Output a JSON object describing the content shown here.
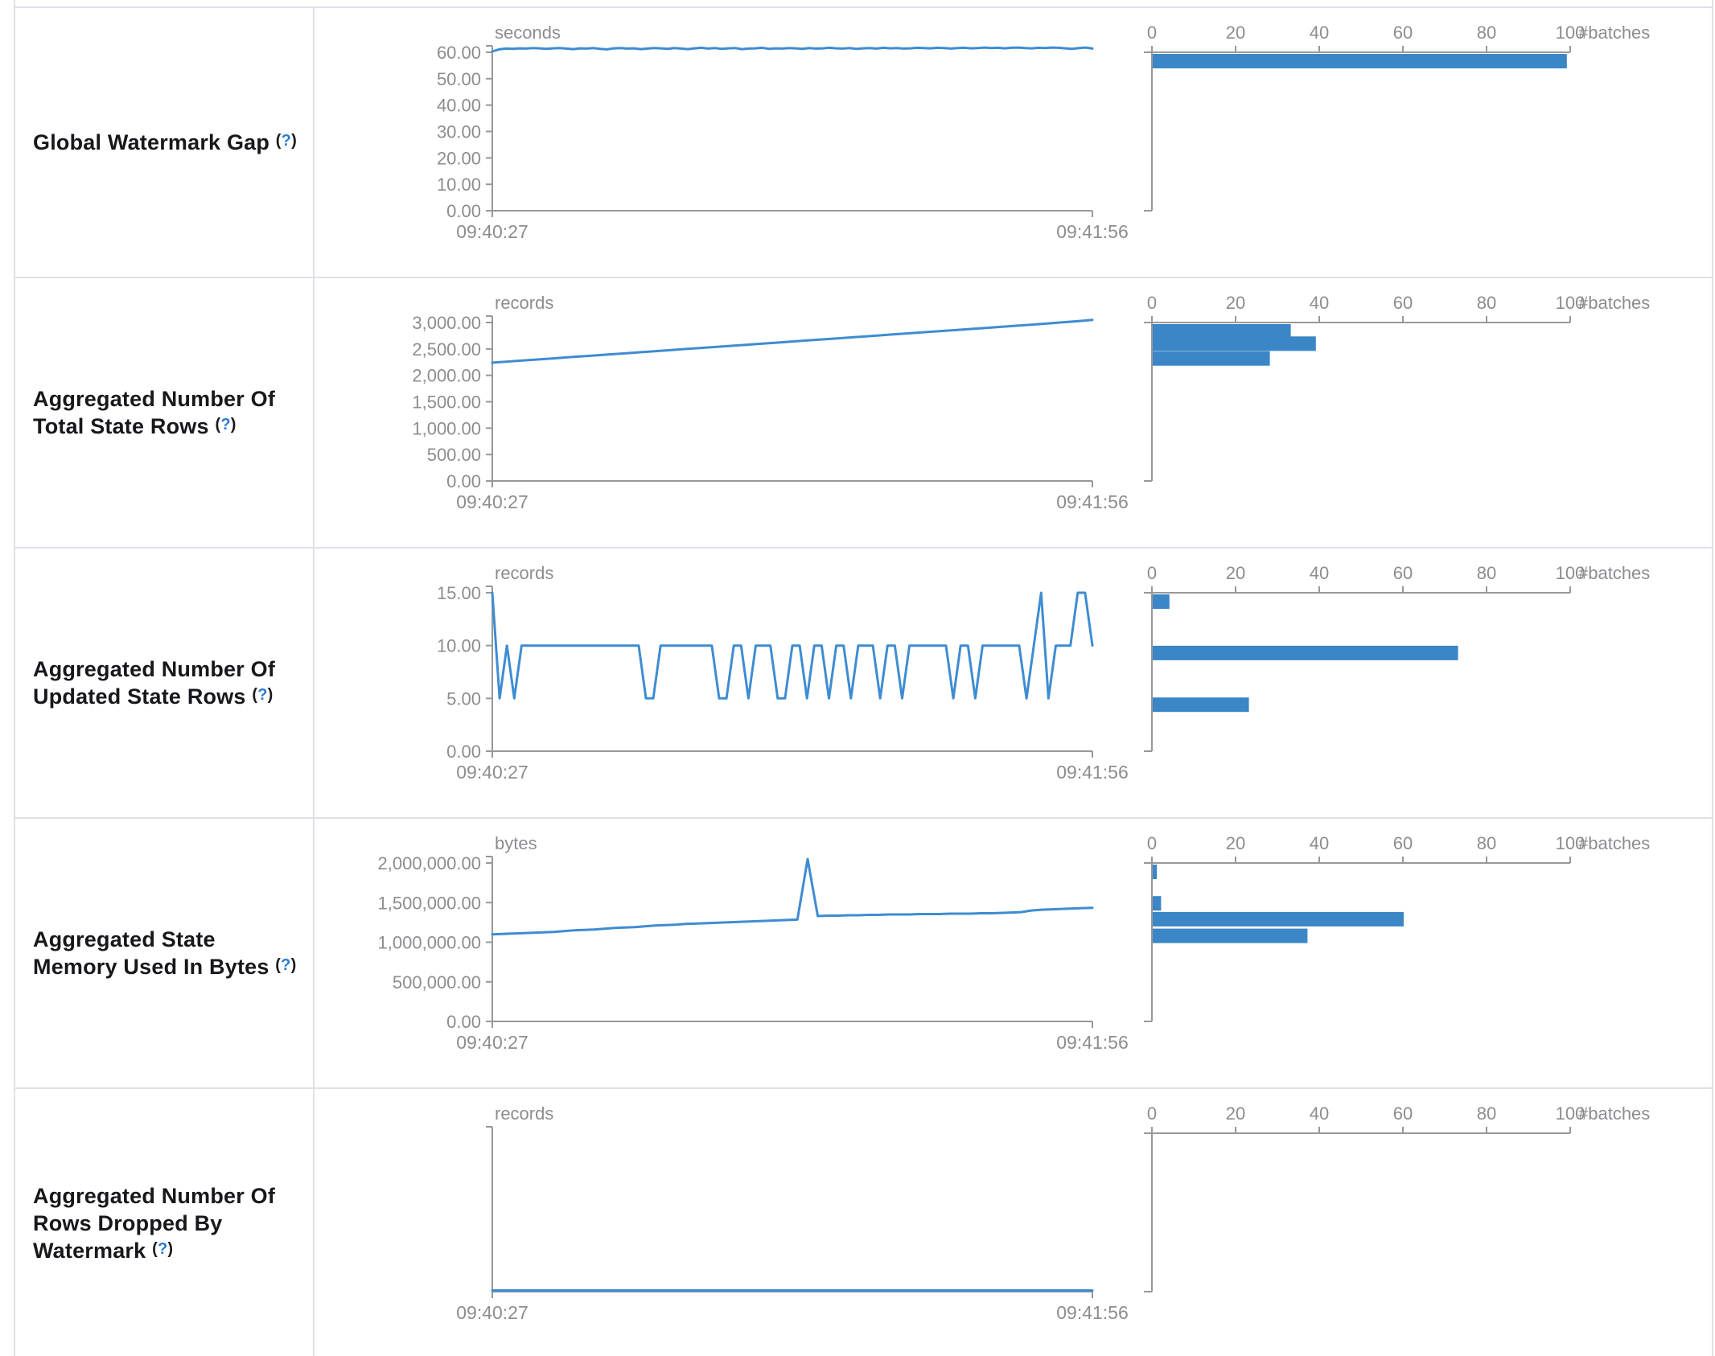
{
  "colors": {
    "accent_line": "#3e8cd2",
    "accent_bar": "#3a86c6",
    "axis": "#97989b",
    "tick_text": "#8b8d91",
    "label_text": "#17181c",
    "help_link": "#2b7cd5",
    "border": "#dee1e6"
  },
  "batches_axis": {
    "tick_labels": [
      "0",
      "20",
      "40",
      "60",
      "80",
      "100"
    ],
    "max": 100,
    "label": "#batches"
  },
  "rows": [
    {
      "label": "Global Watermark Gap",
      "help_open": "(",
      "help_q": "?",
      "help_close": ")",
      "timeline": {
        "type": "line",
        "unit": "seconds",
        "x_start": "09:40:27",
        "x_end": "09:41:56",
        "y_tick_labels": [
          "60.00",
          "50.00",
          "40.00",
          "30.00",
          "20.00",
          "10.00",
          "0.00"
        ],
        "y_top_value": 60,
        "values": [
          60.3,
          61.1,
          61.4,
          61.3,
          61.5,
          61.4,
          61.6,
          61.5,
          61.3,
          61.5,
          61.6,
          61.4,
          61.2,
          61.5,
          61.4,
          61.6,
          61.3,
          61.1,
          61.5,
          61.6,
          61.4,
          61.5,
          61.2,
          61.4,
          61.6,
          61.5,
          61.3,
          61.6,
          61.4,
          61.2,
          61.5,
          61.7,
          61.4,
          61.6,
          61.3,
          61.5,
          61.6,
          61.2,
          61.4,
          61.5,
          61.7,
          61.3,
          61.5,
          61.4,
          61.6,
          61.5,
          61.3,
          61.6,
          61.4,
          61.5,
          61.7,
          61.5,
          61.4,
          61.6,
          61.3,
          61.5,
          61.6,
          61.4,
          61.7,
          61.5,
          61.6,
          61.4,
          61.5,
          61.7,
          61.6,
          61.5,
          61.7,
          61.6,
          61.4,
          61.6,
          61.7,
          61.5,
          61.6,
          61.8,
          61.6,
          61.7,
          61.5,
          61.7,
          61.8,
          61.6,
          61.5,
          61.7,
          61.6,
          61.8,
          61.7,
          61.5,
          61.3,
          61.6,
          61.8,
          61.4
        ]
      },
      "histogram": {
        "type": "bar",
        "xlabel": "#batches",
        "bars": [
          {
            "value_bin": 58,
            "batches": 99
          }
        ]
      }
    },
    {
      "label": "Aggregated Number Of Total State Rows",
      "help_open": "(",
      "help_q": "?",
      "help_close": ")",
      "timeline": {
        "type": "line",
        "unit": "records",
        "x_start": "09:40:27",
        "x_end": "09:41:56",
        "y_tick_labels": [
          "3,000.00",
          "2,500.00",
          "2,000.00",
          "1,500.00",
          "1,000.00",
          "500.00",
          "0.00"
        ],
        "y_top_value": 3000,
        "values": [
          2240,
          2260,
          2280,
          2300,
          2320,
          2340,
          2360,
          2380,
          2400,
          2420,
          2440,
          2460,
          2480,
          2500,
          2520,
          2540,
          2560,
          2580,
          2600,
          2620,
          2640,
          2660,
          2680,
          2700,
          2720,
          2740,
          2760,
          2780,
          2800,
          2820,
          2840,
          2860,
          2880,
          2900,
          2920,
          2940,
          2960,
          2980,
          3005,
          3025,
          3050
        ]
      },
      "histogram": {
        "type": "bar",
        "xlabel": "#batches",
        "bars": [
          {
            "value_bin": 2880,
            "batches": 33
          },
          {
            "value_bin": 2600,
            "batches": 39
          },
          {
            "value_bin": 2320,
            "batches": 28
          }
        ]
      }
    },
    {
      "label": "Aggregated Number Of Updated State Rows",
      "help_open": "(",
      "help_q": "?",
      "help_close": ")",
      "timeline": {
        "type": "line",
        "unit": "records",
        "x_start": "09:40:27",
        "x_end": "09:41:56",
        "y_tick_labels": [
          "15.00",
          "10.00",
          "5.00",
          "0.00"
        ],
        "y_top_value": 15,
        "values": [
          15,
          5,
          10,
          5,
          10,
          10,
          10,
          10,
          10,
          10,
          10,
          10,
          10,
          10,
          10,
          10,
          10,
          10,
          10,
          10,
          10,
          5,
          5,
          10,
          10,
          10,
          10,
          10,
          10,
          10,
          10,
          5,
          5,
          10,
          10,
          5,
          10,
          10,
          10,
          5,
          5,
          10,
          10,
          5,
          10,
          10,
          5,
          10,
          10,
          5,
          10,
          10,
          10,
          5,
          10,
          10,
          5,
          10,
          10,
          10,
          10,
          10,
          10,
          5,
          10,
          10,
          5,
          10,
          10,
          10,
          10,
          10,
          10,
          5,
          10,
          15,
          5,
          10,
          10,
          10,
          15,
          15,
          10
        ]
      },
      "histogram": {
        "type": "bar",
        "xlabel": "#batches",
        "bars": [
          {
            "value_bin": 14.2,
            "batches": 4
          },
          {
            "value_bin": 9.3,
            "batches": 73
          },
          {
            "value_bin": 4.4,
            "batches": 23
          }
        ]
      }
    },
    {
      "label": "Aggregated State Memory Used In Bytes",
      "help_open": "(",
      "help_q": "?",
      "help_close": ")",
      "timeline": {
        "type": "line",
        "unit": "bytes",
        "x_start": "09:40:27",
        "x_end": "09:41:56",
        "y_tick_labels": [
          "2,000,000.00",
          "1,500,000.00",
          "1,000,000.00",
          "500,000.00",
          "0.00"
        ],
        "y_top_value": 2000000,
        "values": [
          1100000,
          1105000,
          1110000,
          1115000,
          1120000,
          1125000,
          1130000,
          1140000,
          1150000,
          1155000,
          1160000,
          1170000,
          1180000,
          1185000,
          1190000,
          1200000,
          1210000,
          1215000,
          1220000,
          1230000,
          1235000,
          1240000,
          1245000,
          1250000,
          1255000,
          1260000,
          1265000,
          1270000,
          1275000,
          1280000,
          1285000,
          2050000,
          1330000,
          1335000,
          1335000,
          1340000,
          1340000,
          1345000,
          1345000,
          1350000,
          1350000,
          1350000,
          1355000,
          1355000,
          1355000,
          1360000,
          1360000,
          1360000,
          1365000,
          1365000,
          1370000,
          1375000,
          1380000,
          1400000,
          1410000,
          1415000,
          1420000,
          1425000,
          1430000,
          1435000
        ]
      },
      "histogram": {
        "type": "bar",
        "xlabel": "#batches",
        "bars": [
          {
            "value_bin": 1890000,
            "batches": 1
          },
          {
            "value_bin": 1490000,
            "batches": 2
          },
          {
            "value_bin": 1290000,
            "batches": 60
          },
          {
            "value_bin": 1080000,
            "batches": 37
          }
        ]
      }
    },
    {
      "label": "Aggregated Number Of Rows Dropped By Watermark",
      "help_open": "(",
      "help_q": "?",
      "help_close": ")",
      "timeline": {
        "type": "line",
        "unit": "records",
        "x_start": "09:40:27",
        "x_end": "09:41:56",
        "y_tick_labels": [],
        "y_top_value": 1,
        "values": [
          0,
          0
        ]
      },
      "histogram": {
        "type": "bar",
        "xlabel": "#batches",
        "bars": []
      }
    }
  ]
}
